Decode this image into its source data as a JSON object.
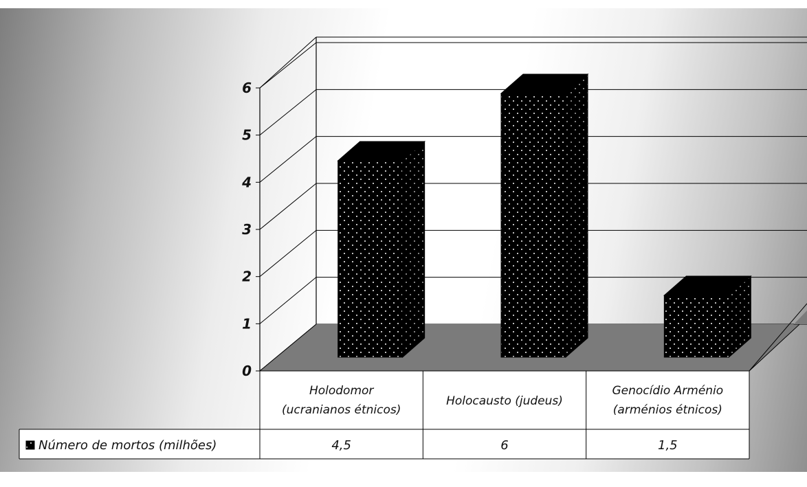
{
  "chart_data": {
    "type": "bar",
    "categories": [
      [
        "Holodomor",
        "(ucranianos étnicos)"
      ],
      [
        "Holocausto (judeus)"
      ],
      [
        "Genocídio Arménio",
        "(arménios étnicos)"
      ]
    ],
    "series": [
      {
        "name": "Número de mortos (milhões)",
        "values": [
          4.5,
          6,
          1.5
        ]
      }
    ],
    "data_table_values": [
      "4,5",
      "6",
      "1,5"
    ],
    "y_ticks": [
      "0",
      "1",
      "2",
      "3",
      "4",
      "5",
      "6"
    ],
    "ylim": [
      0,
      6
    ],
    "grid": true,
    "legend": "data-table",
    "three_d": true,
    "colors": {
      "bar": "#000000",
      "bar_dots": "#ffffff",
      "floor": "#7b7b7b",
      "grid": "#000000",
      "table_bg": "#ffffff"
    }
  }
}
